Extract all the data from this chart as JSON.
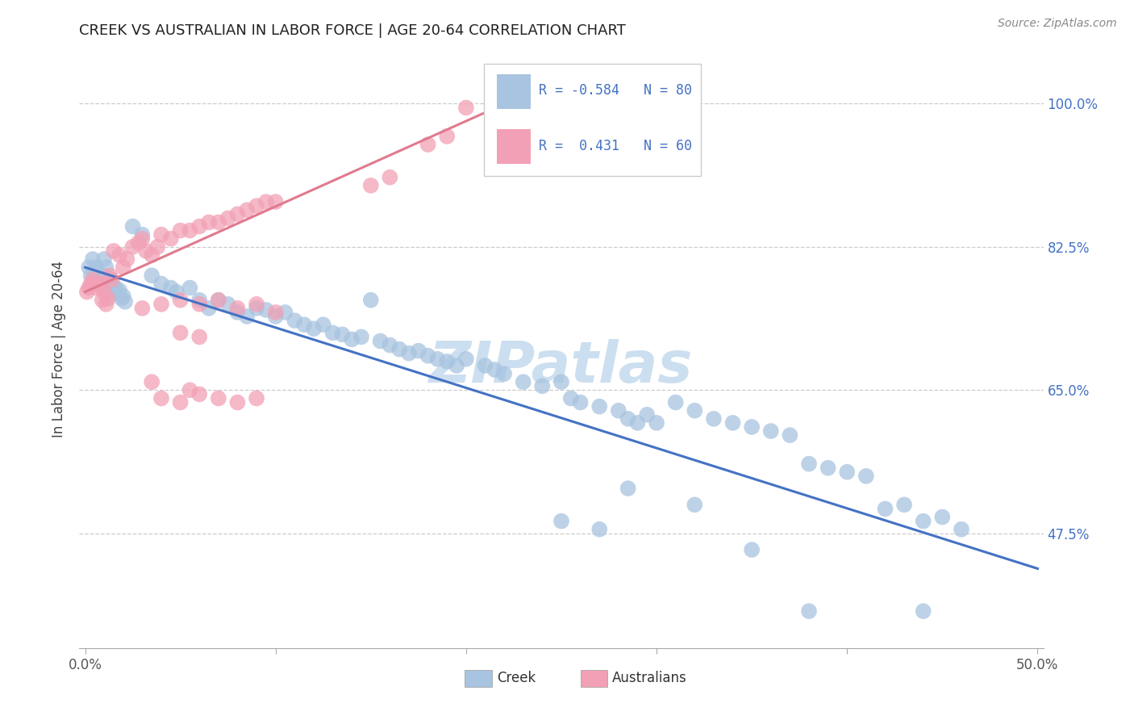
{
  "title": "CREEK VS AUSTRALIAN IN LABOR FORCE | AGE 20-64 CORRELATION CHART",
  "source": "Source: ZipAtlas.com",
  "ylabel": "In Labor Force | Age 20-64",
  "xlim": [
    -0.003,
    0.503
  ],
  "ylim": [
    0.335,
    1.065
  ],
  "xtick_positions": [
    0.0,
    0.1,
    0.2,
    0.3,
    0.4,
    0.5
  ],
  "xticklabels": [
    "0.0%",
    "",
    "",
    "",
    "",
    "50.0%"
  ],
  "ytick_positions": [
    0.475,
    0.65,
    0.825,
    1.0
  ],
  "yticklabels": [
    "47.5%",
    "65.0%",
    "82.5%",
    "100.0%"
  ],
  "creek_color": "#a8c4e0",
  "australians_color": "#f2a0b5",
  "trendline_creek_color": "#4472c4",
  "trendline_australians_color": "#e07a8f",
  "label_color": "#4472c4",
  "watermark": "ZIPatlas",
  "watermark_color": "#ccdff0",
  "creek_trend_x0": 0.0,
  "creek_trend_y0": 0.8,
  "creek_trend_x1": 0.5,
  "creek_trend_y1": 0.432,
  "aust_trend_x0": 0.0,
  "aust_trend_y0": 0.77,
  "aust_trend_x1": 0.23,
  "aust_trend_y1": 1.01
}
